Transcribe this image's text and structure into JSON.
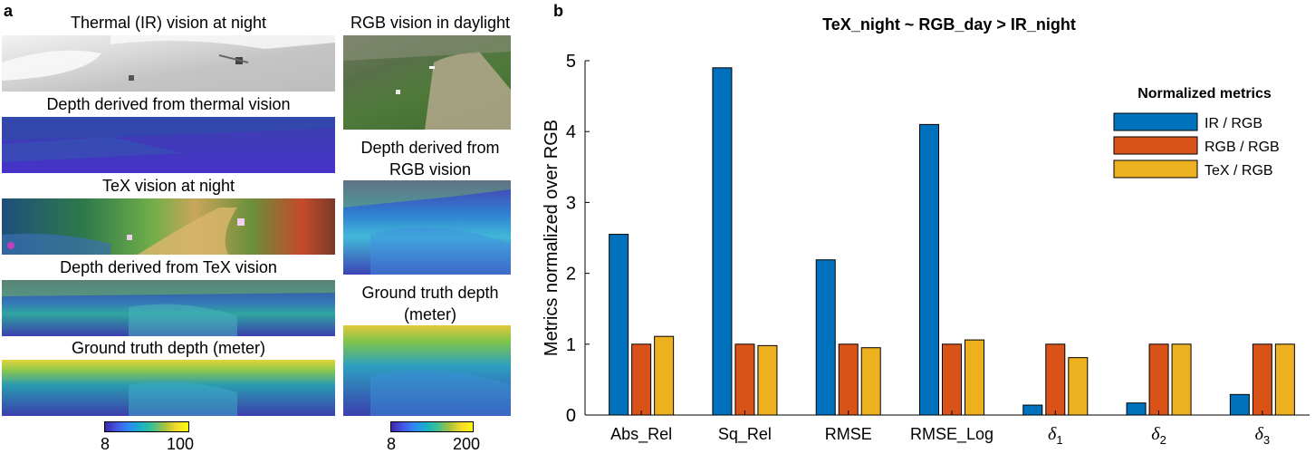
{
  "panel_a": {
    "letter": "a",
    "left_column": [
      {
        "caption": "Thermal (IR) vision at night"
      },
      {
        "caption": "Depth derived from thermal vision"
      },
      {
        "caption": "TeX vision at night"
      },
      {
        "caption": "Depth derived from TeX vision"
      },
      {
        "caption": "Ground truth depth (meter)"
      }
    ],
    "right_column": [
      {
        "caption": "RGB vision in daylight"
      },
      {
        "caption_line1": "Depth derived from",
        "caption_line2": "RGB vision"
      },
      {
        "caption_line1": "Ground truth depth",
        "caption_line2": "(meter)"
      }
    ],
    "colorbar_left": {
      "min": "8",
      "max": "100"
    },
    "colorbar_right": {
      "min": "8",
      "max": "200"
    }
  },
  "panel_b": {
    "letter": "b",
    "colors": {
      "ir": "#0072BD",
      "rgb": "#D95319",
      "tex": "#EDB120"
    },
    "chart_data": {
      "type": "bar",
      "title": "TeX_night  ~  RGB_day  >  IR_night",
      "ylabel": "Metrics normalized over RGB",
      "xlabel": "",
      "ylim": [
        0,
        5
      ],
      "yticks": [
        "0",
        "1",
        "2",
        "3",
        "4",
        "5"
      ],
      "categories": [
        "Abs_Rel",
        "Sq_Rel",
        "RMSE",
        "RMSE_Log",
        "δ1",
        "δ2",
        "δ3"
      ],
      "category_labels": [
        {
          "base": "Abs_Rel",
          "sub": ""
        },
        {
          "base": "Sq_Rel",
          "sub": ""
        },
        {
          "base": "RMSE",
          "sub": ""
        },
        {
          "base": "RMSE_Log",
          "sub": ""
        },
        {
          "base": "δ",
          "sub": "1"
        },
        {
          "base": "δ",
          "sub": "2"
        },
        {
          "base": "δ",
          "sub": "3"
        }
      ],
      "legend_title": "Normalized metrics",
      "legend_position": "top-right",
      "series": [
        {
          "name": "IR / RGB",
          "values": [
            2.55,
            4.9,
            2.19,
            4.1,
            0.14,
            0.17,
            0.29
          ]
        },
        {
          "name": "RGB / RGB",
          "values": [
            1.0,
            1.0,
            1.0,
            1.0,
            1.0,
            1.0,
            1.0
          ]
        },
        {
          "name": "TeX / RGB",
          "values": [
            1.11,
            0.98,
            0.95,
            1.06,
            0.81,
            1.0,
            1.0
          ]
        }
      ]
    }
  }
}
